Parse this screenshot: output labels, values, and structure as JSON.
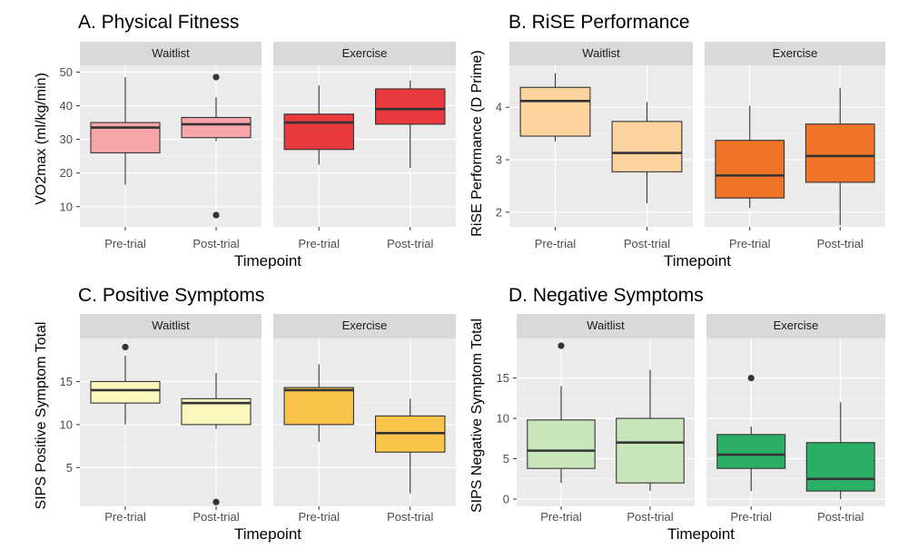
{
  "chart_data": [
    {
      "type": "box",
      "title": "A. Physical Fitness",
      "xlabel": "Timepoint",
      "ylabel": "VO2max (ml/kg/min)",
      "ylim": [
        4,
        52
      ],
      "yticks": [
        10,
        20,
        30,
        40,
        50
      ],
      "categories": [
        "Pre-trial",
        "Post-trial"
      ],
      "facets": [
        {
          "name": "Waitlist",
          "boxes": [
            {
              "q1": 26,
              "median": 33.5,
              "q3": 35,
              "min": 16.5,
              "max": 48.5,
              "outliers": [],
              "color": "#F8A5A9"
            },
            {
              "q1": 30.5,
              "median": 34.5,
              "q3": 36.5,
              "min": 29.5,
              "max": 42.5,
              "outliers": [
                48.5,
                7.5
              ],
              "color": "#F8A5A9"
            }
          ]
        },
        {
          "name": "Exercise",
          "boxes": [
            {
              "q1": 27,
              "median": 35,
              "q3": 37.5,
              "min": 22.5,
              "max": 46,
              "outliers": [],
              "color": "#E8393F"
            },
            {
              "q1": 34.5,
              "median": 39,
              "q3": 45,
              "min": 21.5,
              "max": 47.5,
              "outliers": [],
              "color": "#E8393F"
            }
          ]
        }
      ]
    },
    {
      "type": "box",
      "title": "B. RiSE Performance",
      "xlabel": "Timepoint",
      "ylabel": "RiSE Performance (D Prime)",
      "ylim": [
        1.72,
        4.8
      ],
      "yticks": [
        2,
        3,
        4
      ],
      "categories": [
        "Pre-trial",
        "Post-trial"
      ],
      "facets": [
        {
          "name": "Waitlist",
          "boxes": [
            {
              "q1": 3.45,
              "median": 4.12,
              "q3": 4.38,
              "min": 3.35,
              "max": 4.65,
              "outliers": [],
              "color": "#FDD49E"
            },
            {
              "q1": 2.77,
              "median": 3.13,
              "q3": 3.73,
              "min": 2.17,
              "max": 4.1,
              "outliers": [],
              "color": "#FDD49E"
            }
          ]
        },
        {
          "name": "Exercise",
          "boxes": [
            {
              "q1": 2.27,
              "median": 2.7,
              "q3": 3.37,
              "min": 2.08,
              "max": 4.03,
              "outliers": [],
              "color": "#F07428"
            },
            {
              "q1": 2.57,
              "median": 3.07,
              "q3": 3.68,
              "min": 1.75,
              "max": 4.37,
              "outliers": [],
              "color": "#F07428"
            }
          ]
        }
      ]
    },
    {
      "type": "box",
      "title": "C. Positive Symptoms",
      "xlabel": "Timepoint",
      "ylabel": "SIPS Positive Symptom Total",
      "ylim": [
        0.5,
        20
      ],
      "yticks": [
        5,
        10,
        15
      ],
      "categories": [
        "Pre-trial",
        "Post-trial"
      ],
      "facets": [
        {
          "name": "Waitlist",
          "boxes": [
            {
              "q1": 12.5,
              "median": 14,
              "q3": 15,
              "min": 10,
              "max": 18,
              "outliers": [
                19
              ],
              "color": "#FAF6BD"
            },
            {
              "q1": 10,
              "median": 12.5,
              "q3": 13,
              "min": 9.5,
              "max": 16,
              "outliers": [
                1
              ],
              "color": "#FAF6BD"
            }
          ]
        },
        {
          "name": "Exercise",
          "boxes": [
            {
              "q1": 10,
              "median": 14,
              "q3": 14.3,
              "min": 8,
              "max": 17,
              "outliers": [],
              "color": "#F8C54A"
            },
            {
              "q1": 6.8,
              "median": 9,
              "q3": 11,
              "min": 2,
              "max": 13,
              "outliers": [],
              "color": "#F8C54A"
            }
          ]
        }
      ]
    },
    {
      "type": "box",
      "title": "D. Negative Symptoms",
      "xlabel": "Timepoint",
      "ylabel": "SIPS Negative Symptom Total",
      "ylim": [
        -0.9,
        19.9
      ],
      "yticks": [
        0,
        5,
        10,
        15
      ],
      "categories": [
        "Pre-trial",
        "Post-trial"
      ],
      "facets": [
        {
          "name": "Waitlist",
          "boxes": [
            {
              "q1": 3.8,
              "median": 6,
              "q3": 9.8,
              "min": 2,
              "max": 14,
              "outliers": [
                19
              ],
              "color": "#C9E6BB"
            },
            {
              "q1": 2,
              "median": 7,
              "q3": 10,
              "min": 1,
              "max": 16,
              "outliers": [],
              "color": "#C9E6BB"
            }
          ]
        },
        {
          "name": "Exercise",
          "boxes": [
            {
              "q1": 3.8,
              "median": 5.5,
              "q3": 8,
              "min": 1,
              "max": 9,
              "outliers": [
                15
              ],
              "color": "#2BAE66"
            },
            {
              "q1": 1,
              "median": 2.5,
              "q3": 7,
              "min": 0,
              "max": 12,
              "outliers": [],
              "color": "#2BAE66"
            }
          ]
        }
      ]
    }
  ]
}
